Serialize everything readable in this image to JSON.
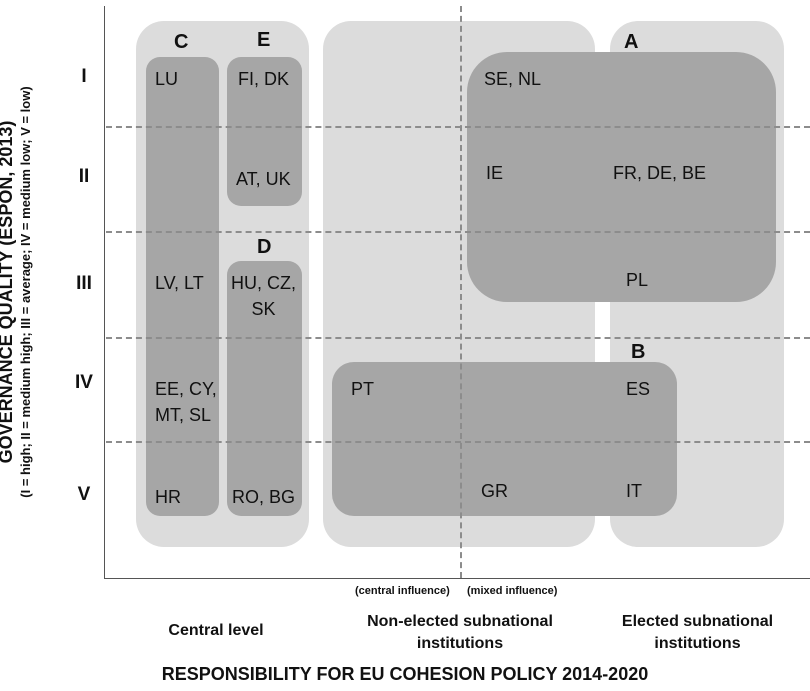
{
  "axes": {
    "y_title": "GOVERNANCE QUALITY (ESPON, 2013)",
    "y_subtitle": "(I = high; II = medium high; III = average; IV = medium low; V = low)",
    "x_title": "RESPONSIBILITY FOR EU COHESION POLICY 2014-2020",
    "rows": [
      "I",
      "II",
      "III",
      "IV",
      "V"
    ],
    "columns": [
      "Central level",
      "Non-elected subnational\ninstitutions",
      "Elected subnational\ninstitutions"
    ],
    "influence_left": "(central influence)",
    "influence_right": "(mixed influence)"
  },
  "groups": {
    "A": "A",
    "B": "B",
    "C": "C",
    "D": "D",
    "E": "E"
  },
  "countries": {
    "lu": "LU",
    "fi_dk": "FI, DK",
    "at_uk": "AT, UK",
    "lv_lt": "LV, LT",
    "hu_cz_sk": "HU, CZ,\nSK",
    "ee_cy_mt_sl": "EE, CY,\nMT, SL",
    "hr": "HR",
    "ro_bg": "RO, BG",
    "se_nl": "SE, NL",
    "ie": "IE",
    "fr_de_be": "FR, DE, BE",
    "pl": "PL",
    "pt": "PT",
    "es": "ES",
    "gr": "GR",
    "it": "IT"
  },
  "colors": {
    "light_region": "#dcdcdc",
    "dark_region": "#a6a6a6",
    "dashed_line": "#8c8c8c"
  }
}
